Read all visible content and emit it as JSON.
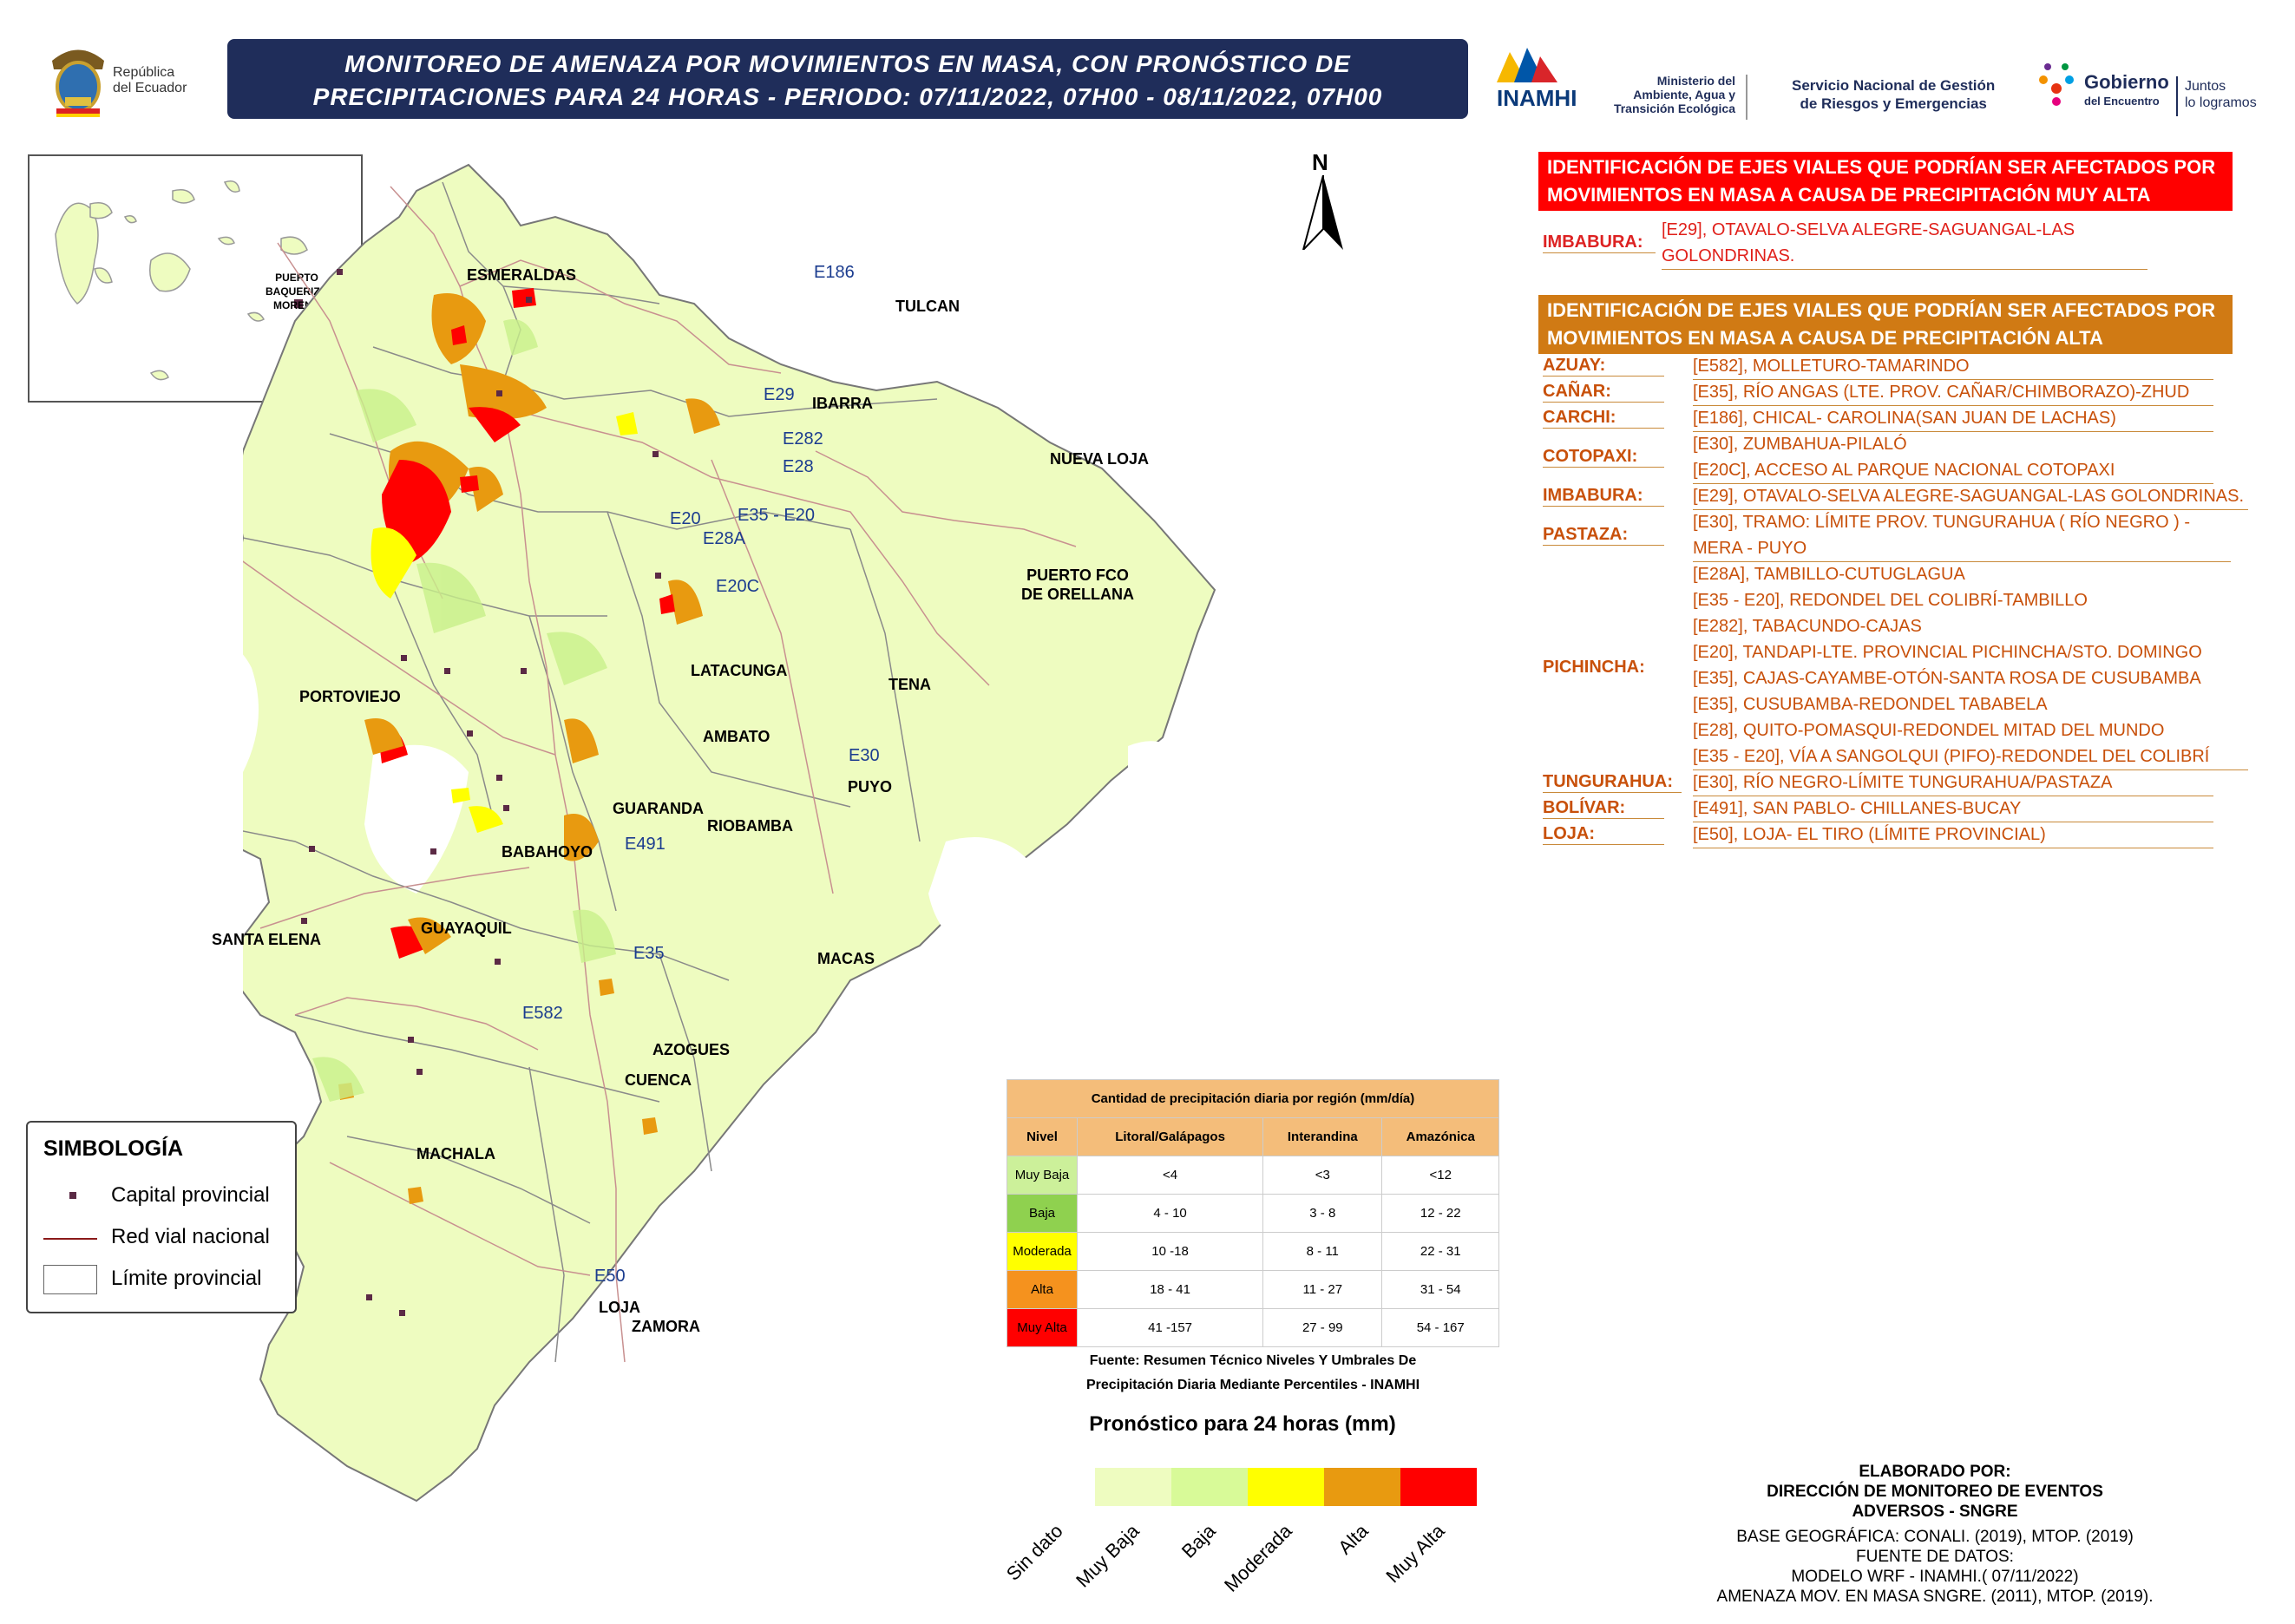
{
  "header": {
    "title_line1": "MONITOREO DE AMENAZA POR MOVIMIENTOS EN MASA, CON PRONÓSTICO DE",
    "title_line2": "PRECIPITACIONES PARA 24 HORAS - PERIODO: 07/11/2022, 07H00 - 08/11/2022, 07H00",
    "republica_line1": "República",
    "republica_line2": "del Ecuador",
    "inamhi": "INAMHI",
    "ministerio_line1": "Ministerio del",
    "ministerio_line2": "Ambiente, Agua y",
    "ministerio_line3": "Transición Ecológica",
    "sngre_line1": "Servicio Nacional de Gestión",
    "sngre_line2": "de Riesgos y Emergencias",
    "gobierno_line1": "Gobierno",
    "gobierno_line2": "del Encuentro",
    "juntos_line1": "Juntos",
    "juntos_line2": "lo logramos"
  },
  "inset": {
    "label_line1": "PUERTO",
    "label_line2": "BAQUERIZO",
    "label_line3": "MORENO"
  },
  "north_arrow": "N",
  "cities": {
    "esmeraldas": "ESMERALDAS",
    "tulcan": "TULCAN",
    "ibarra": "IBARRA",
    "nueva_loja": "NUEVA LOJA",
    "puerto_fco_line1": "PUERTO FCO",
    "puerto_fco_line2": "DE ORELLANA",
    "portoviejo": "PORTOVIEJO",
    "latacunga": "LATACUNGA",
    "tena": "TENA",
    "ambato": "AMBATO",
    "puyo": "PUYO",
    "guaranda": "GUARANDA",
    "riobamba": "RIOBAMBA",
    "babahoyo": "BABAHOYO",
    "santa_elena": "SANTA ELENA",
    "guayaquil": "GUAYAQUIL",
    "macas": "MACAS",
    "azogues": "AZOGUES",
    "cuenca": "CUENCA",
    "machala": "MACHALA",
    "loja": "LOJA",
    "zamora": "ZAMORA"
  },
  "roads": {
    "e186": "E186",
    "e29": "E29",
    "e282": "E282",
    "e28": "E28",
    "e20": "E20",
    "e35_e20": "E35 - E20",
    "e28a": "E28A",
    "e20c": "E20C",
    "e30": "E30",
    "e491": "E491",
    "e35": "E35",
    "e582": "E582",
    "e50": "E50"
  },
  "symbology": {
    "title": "SIMBOLOGÍA",
    "capital": "Capital provincial",
    "road": "Red vial nacional",
    "limit": "Límite provincial"
  },
  "legend_table": {
    "title": "Cantidad de precipitación diaria por región (mm/día)",
    "headers": [
      "Nivel",
      "Litoral/Galápagos",
      "Interandina",
      "Amazónica"
    ],
    "rows": [
      {
        "level": "Muy Baja",
        "color": "#ccf09a",
        "litoral": "<4",
        "interandina": "<3",
        "amazonica": "<12"
      },
      {
        "level": "Baja",
        "color": "#8fd14f",
        "litoral": "4 - 10",
        "interandina": "3 - 8",
        "amazonica": "12 - 22"
      },
      {
        "level": "Moderada",
        "color": "#ffff00",
        "litoral": "10 -18",
        "interandina": "8 - 11",
        "amazonica": "22 - 31"
      },
      {
        "level": "Alta",
        "color": "#f5921e",
        "litoral": "18 - 41",
        "interandina": "11 - 27",
        "amazonica": "31 - 54"
      },
      {
        "level": "Muy Alta",
        "color": "#ff0000",
        "litoral": "41 -157",
        "interandina": "27 - 99",
        "amazonica": "54 - 167"
      }
    ],
    "source_line1": "Fuente: Resumen Técnico Niveles Y Umbrales De",
    "source_line2": "Precipitación Diaria Mediante Percentiles - INAMHI"
  },
  "forecast": {
    "title": "Pronóstico para 24 horas (mm)",
    "classes": [
      {
        "label": "Sin dato",
        "color": "#eefcc0"
      },
      {
        "label": "Muy Baja",
        "color": "#d8fa98"
      },
      {
        "label": "Baja",
        "color": "#ffff00"
      },
      {
        "label": "Moderada",
        "color": "#e89a10"
      },
      {
        "label": "Alta",
        "color": "#ff0000"
      }
    ],
    "extra_label": "Muy Alta"
  },
  "panel_muy_alta": {
    "header_line1": "IDENTIFICACIÓN DE EJES VIALES QUE PODRÍAN SER AFECTADOS POR",
    "header_line2": "MOVIMIENTOS EN MASA A CAUSA DE  PRECIPITACIÓN MUY ALTA",
    "province": "IMBABURA:",
    "road_line1": "[E29], OTAVALO-SELVA ALEGRE-SAGUANGAL-LAS",
    "road_line2": "GOLONDRINAS."
  },
  "panel_alta": {
    "header_line1": "IDENTIFICACIÓN DE EJES VIALES QUE PODRÍAN SER AFECTADOS POR",
    "header_line2": "MOVIMIENTOS EN MASA A CAUSA DE  PRECIPITACIÓN ALTA",
    "azuay": "AZUAY:",
    "azuay_r1": "[E582], MOLLETURO-TAMARINDO",
    "canar": "CAÑAR:",
    "canar_r1": "[E35], RÍO ANGAS (LTE. PROV. CAÑAR/CHIMBORAZO)-ZHUD",
    "carchi": "CARCHI:",
    "carchi_r1": "[E186], CHICAL- CAROLINA(SAN JUAN DE LACHAS)",
    "cotopaxi": "COTOPAXI:",
    "cotopaxi_r1": "[E30], ZUMBAHUA-PILALÓ",
    "cotopaxi_r2": "[E20C], ACCESO AL PARQUE NACIONAL COTOPAXI",
    "imbabura": "IMBABURA:",
    "imbabura_r1": "[E29], OTAVALO-SELVA ALEGRE-SAGUANGAL-LAS GOLONDRINAS.",
    "pastaza": "PASTAZA:",
    "pastaza_r1": "[E30], TRAMO: LÍMITE PROV. TUNGURAHUA ( RÍO NEGRO ) -",
    "pastaza_r2": "MERA - PUYO",
    "pichincha": "PICHINCHA:",
    "pichincha_r1": "[E28A], TAMBILLO-CUTUGLAGUA",
    "pichincha_r2": "[E35 - E20], REDONDEL DEL COLIBRÍ-TAMBILLO",
    "pichincha_r3": "[E282], TABACUNDO-CAJAS",
    "pichincha_r4": "[E20], TANDAPI-LTE. PROVINCIAL PICHINCHA/STO. DOMINGO",
    "pichincha_r5": "[E35], CAJAS-CAYAMBE-OTÓN-SANTA ROSA DE CUSUBAMBA",
    "pichincha_r6": "[E35], CUSUBAMBA-REDONDEL TABABELA",
    "pichincha_r7": "[E28], QUITO-POMASQUI-REDONDEL MITAD DEL MUNDO",
    "pichincha_r8": "[E35 - E20], VÍA A SANGOLQUI (PIFO)-REDONDEL DEL COLIBRÍ",
    "tungurahua": "TUNGURAHUA:",
    "tungurahua_r1": "[E30], RÍO NEGRO-LÍMITE TUNGURAHUA/PASTAZA",
    "bolivar": "BOLÍVAR:",
    "bolivar_r1": "[E491], SAN PABLO- CHILLANES-BUCAY",
    "loja": "LOJA:",
    "loja_r1": "[E50], LOJA- EL TIRO (LÍMITE PROVINCIAL)"
  },
  "credits": {
    "line1": "ELABORADO POR:",
    "line2": "DIRECCIÓN DE MONITOREO DE EVENTOS",
    "line3": "ADVERSOS - SNGRE",
    "line4": "BASE GEOGRÁFICA: CONALI. (2019), MTOP. (2019)",
    "line5": "FUENTE DE DATOS:",
    "line6": "MODELO WRF - INAMHI.( 07/11/2022)",
    "line7": "AMENAZA MOV. EN MASA SNGRE. (2011), MTOP. (2019)."
  },
  "colors": {
    "title_bg": "#1f2d5a",
    "land": "#eefcc0",
    "red_header": "#ff0000",
    "orange_header": "#d07a14",
    "road_text": "#c8500a",
    "prov_text": "#c8500a"
  }
}
